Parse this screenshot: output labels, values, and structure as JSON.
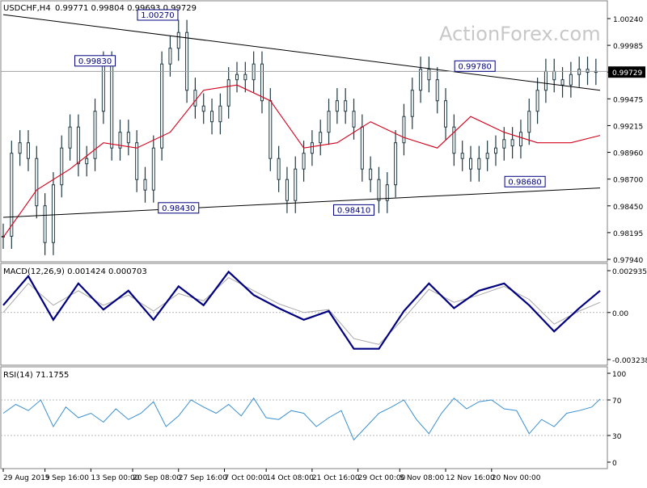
{
  "header": {
    "symbol": "USDCHF,H4",
    "ohlc": "0.99771 0.99804 0.99693 0.99729",
    "watermark": "ActionForex.com"
  },
  "colors": {
    "candle": "#1f3a44",
    "ma": "#d4001a",
    "trendline": "#000000",
    "macd": "#000080",
    "signal": "#a8a8a8",
    "rsi": "#3a8fd0",
    "grid": "#b8b8b8",
    "label_border": "#000080"
  },
  "chart_data": [
    {
      "panel": "price",
      "type": "line",
      "ylim": [
        0.9794,
        1.0024
      ],
      "grid": false,
      "y_ticks": [
        "1.00240",
        "0.99985",
        "0.99729",
        "0.99475",
        "0.99215",
        "0.98960",
        "0.98700",
        "0.98450",
        "0.98195",
        "0.97940"
      ],
      "current_price": "0.99729",
      "annotations": [
        {
          "text": "1.00270",
          "x": 37,
          "y": 1.0027
        },
        {
          "text": "0.99830",
          "x": 22,
          "y": 0.9983
        },
        {
          "text": "0.99780",
          "x": 113,
          "y": 0.9978
        },
        {
          "text": "0.98430",
          "x": 42,
          "y": 0.9843
        },
        {
          "text": "0.98410",
          "x": 84,
          "y": 0.9841
        },
        {
          "text": "0.98680",
          "x": 125,
          "y": 0.9868
        }
      ],
      "series": [
        {
          "name": "",
          "style": "close",
          "x": [
            0,
            2,
            4,
            6,
            8,
            10,
            12,
            14,
            16,
            18,
            20,
            22,
            24,
            26,
            28,
            30,
            32,
            34,
            36,
            38,
            40,
            42,
            44,
            46,
            48,
            50,
            52,
            54,
            56,
            58,
            60,
            62,
            64,
            66,
            68,
            70,
            72,
            74,
            76,
            78,
            80,
            82,
            84,
            86,
            88,
            90,
            92,
            94,
            96,
            98,
            100,
            102,
            104,
            106,
            108,
            110,
            112,
            114,
            116,
            118,
            120,
            122,
            124,
            126,
            128,
            130,
            132,
            134,
            136,
            138,
            140,
            142
          ],
          "y": [
            0.9816,
            0.9895,
            0.9905,
            0.989,
            0.9845,
            0.981,
            0.9865,
            0.99,
            0.992,
            0.9885,
            0.989,
            0.9935,
            0.998,
            0.99,
            0.9915,
            0.9905,
            0.987,
            0.986,
            0.99,
            0.998,
            0.9995,
            1.001,
            0.9955,
            0.994,
            0.9935,
            0.9925,
            0.994,
            0.9965,
            0.997,
            0.9965,
            0.998,
            0.9945,
            0.989,
            0.987,
            0.985,
            0.988,
            0.9895,
            0.9905,
            0.9915,
            0.9935,
            0.9945,
            0.9935,
            0.992,
            0.988,
            0.987,
            0.985,
            0.9865,
            0.9905,
            0.993,
            0.9955,
            0.9975,
            0.9965,
            0.9945,
            0.992,
            0.9895,
            0.989,
            0.988,
            0.989,
            0.9895,
            0.99,
            0.9908,
            0.9902,
            0.9915,
            0.9935,
            0.9955,
            0.9973,
            0.9965,
            0.996,
            0.997,
            0.9975,
            0.9972,
            0.9973
          ]
        },
        {
          "name": "",
          "style": "ma",
          "x": [
            0,
            8,
            16,
            24,
            32,
            40,
            48,
            56,
            64,
            72,
            80,
            88,
            96,
            104,
            112,
            120,
            128,
            136,
            143
          ],
          "y": [
            0.9815,
            0.986,
            0.988,
            0.9905,
            0.99,
            0.9915,
            0.9955,
            0.996,
            0.9945,
            0.99,
            0.9905,
            0.9925,
            0.991,
            0.99,
            0.993,
            0.9915,
            0.9905,
            0.9905,
            0.9912
          ]
        },
        {
          "name": "",
          "style": "trendline",
          "x": [
            0,
            143
          ],
          "y": [
            1.0027,
            0.9955
          ]
        },
        {
          "name": "",
          "style": "trendline",
          "x": [
            0,
            143
          ],
          "y": [
            0.9834,
            0.9862
          ]
        }
      ]
    },
    {
      "panel": "macd",
      "type": "line",
      "title": "MACD(12,26,9) 0.001424 0.000703",
      "ylim": [
        -0.003238,
        0.002935
      ],
      "y_ticks": [
        "0.002935",
        "0.00",
        "-0.003238"
      ],
      "series": [
        {
          "name": "",
          "style": "macd",
          "x": [
            0,
            6,
            12,
            18,
            24,
            30,
            36,
            42,
            48,
            54,
            60,
            66,
            72,
            78,
            84,
            90,
            96,
            102,
            108,
            114,
            120,
            126,
            132,
            138,
            143
          ],
          "y": [
            0.0005,
            0.0025,
            -0.0005,
            0.002,
            0.0002,
            0.0015,
            -0.0005,
            0.0018,
            0.0005,
            0.0028,
            0.0012,
            0.0003,
            -0.0005,
            0.0001,
            -0.0025,
            -0.0025,
            0.0001,
            0.002,
            0.0003,
            0.0015,
            0.002,
            0.0005,
            -0.0013,
            0.0003,
            0.0015
          ]
        },
        {
          "name": "",
          "style": "signal",
          "x": [
            0,
            6,
            12,
            18,
            24,
            30,
            36,
            42,
            48,
            54,
            60,
            66,
            72,
            78,
            84,
            90,
            96,
            102,
            108,
            114,
            120,
            126,
            132,
            138,
            143
          ],
          "y": [
            0.0,
            0.002,
            0.0005,
            0.0015,
            0.0005,
            0.0012,
            0.0001,
            0.0013,
            0.0008,
            0.0024,
            0.0015,
            0.0006,
            0.0,
            0.0002,
            -0.0018,
            -0.0022,
            -0.0004,
            0.0016,
            0.0007,
            0.0012,
            0.0018,
            0.0009,
            -0.0008,
            0.0001,
            0.0007
          ]
        }
      ]
    },
    {
      "panel": "rsi",
      "type": "line",
      "title": "RSI(14) 71.1755",
      "ylim": [
        0,
        100
      ],
      "y_ticks": [
        "100",
        "70",
        "30",
        "0"
      ],
      "levels": [
        70,
        30
      ],
      "series": [
        {
          "name": "",
          "style": "rsi",
          "x": [
            0,
            3,
            6,
            9,
            12,
            15,
            18,
            21,
            24,
            27,
            30,
            33,
            36,
            39,
            42,
            45,
            48,
            51,
            54,
            57,
            60,
            63,
            66,
            69,
            72,
            75,
            78,
            81,
            84,
            87,
            90,
            93,
            96,
            99,
            102,
            105,
            108,
            111,
            114,
            117,
            120,
            123,
            126,
            129,
            132,
            135,
            138,
            141,
            143
          ],
          "y": [
            55,
            65,
            58,
            70,
            40,
            62,
            50,
            55,
            45,
            60,
            48,
            55,
            68,
            40,
            52,
            70,
            62,
            55,
            65,
            52,
            72,
            50,
            48,
            58,
            55,
            40,
            50,
            58,
            25,
            40,
            55,
            62,
            70,
            48,
            32,
            55,
            72,
            60,
            68,
            70,
            60,
            58,
            32,
            48,
            40,
            55,
            58,
            62,
            71
          ]
        }
      ],
      "x_ticks": [
        {
          "label": "29 Aug 2019",
          "x": 0
        },
        {
          "label": "5 Sep 16:00",
          "x": 10
        },
        {
          "label": "13 Sep 00:00",
          "x": 21
        },
        {
          "label": "20 Sep 08:00",
          "x": 31
        },
        {
          "label": "27 Sep 16:00",
          "x": 42
        },
        {
          "label": "7 Oct 00:00",
          "x": 53
        },
        {
          "label": "14 Oct 08:00",
          "x": 63
        },
        {
          "label": "21 Oct 16:00",
          "x": 74
        },
        {
          "label": "29 Oct 00:00",
          "x": 85
        },
        {
          "label": "5 Nov 08:00",
          "x": 95
        },
        {
          "label": "12 Nov 16:00",
          "x": 106
        },
        {
          "label": "20 Nov 00:00",
          "x": 117
        }
      ]
    }
  ]
}
